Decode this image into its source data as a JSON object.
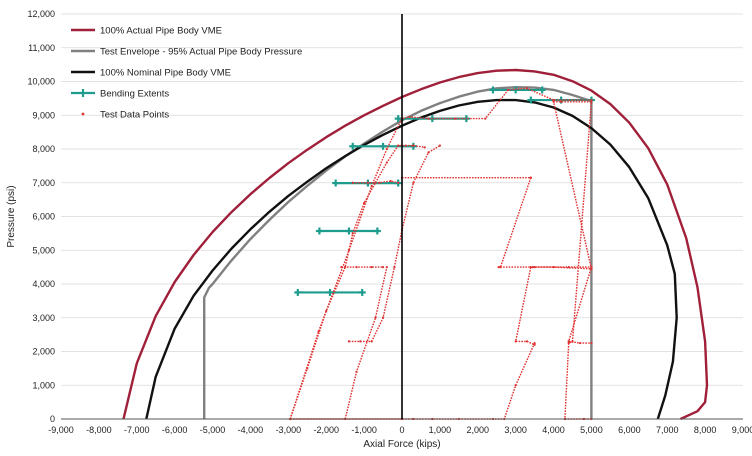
{
  "chart_data": {
    "type": "line",
    "xlabel": "Axial Force (kips)",
    "ylabel": "Pressure (psi)",
    "xlim": [
      -9000,
      9000
    ],
    "ylim": [
      0,
      12000
    ],
    "x_ticks": [
      "-9,000",
      "-8,000",
      "-7,000",
      "-6,000",
      "-5,000",
      "-4,000",
      "-3,000",
      "-2,000",
      "-1,000",
      "0",
      "1,000",
      "2,000",
      "3,000",
      "4,000",
      "5,000",
      "6,000",
      "7,000",
      "8,000",
      "9,000"
    ],
    "y_ticks": [
      "0",
      "1,000",
      "2,000",
      "3,000",
      "4,000",
      "5,000",
      "6,000",
      "7,000",
      "8,000",
      "9,000",
      "10,000",
      "11,000",
      "12,000"
    ],
    "grid": "horizontal",
    "legend_position": "top-left",
    "legend": [
      {
        "label": "100% Actual Pipe Body VME",
        "color": "#A0203A",
        "kind": "line"
      },
      {
        "label": "Test Envelope - 95% Actual Pipe Body Pressure",
        "color": "#808080",
        "kind": "line"
      },
      {
        "label": "100% Nominal Pipe Body VME",
        "color": "#111111",
        "kind": "line"
      },
      {
        "label": "Bending Extents",
        "color": "#1E9C8E",
        "kind": "marker-line"
      },
      {
        "label": "Test Data Points",
        "color": "#E03030",
        "kind": "points"
      }
    ],
    "series": [
      {
        "name": "100% Actual Pipe Body VME",
        "color": "#A0203A",
        "x": [
          -7350,
          -7000,
          -6500,
          -6000,
          -5500,
          -5000,
          -4500,
          -4000,
          -3500,
          -3000,
          -2500,
          -2000,
          -1500,
          -1000,
          -500,
          0,
          500,
          1000,
          1500,
          2000,
          2500,
          3000,
          3500,
          4000,
          4500,
          5000,
          5500,
          6000,
          6500,
          7000,
          7500,
          7800,
          8000,
          8050,
          8000,
          7800,
          7350
        ],
        "y": [
          0,
          1650,
          3050,
          4060,
          4860,
          5540,
          6130,
          6660,
          7140,
          7580,
          7980,
          8350,
          8690,
          9000,
          9280,
          9540,
          9770,
          9970,
          10130,
          10250,
          10320,
          10340,
          10300,
          10200,
          10010,
          9730,
          9330,
          8780,
          8020,
          6950,
          5360,
          3900,
          2300,
          1000,
          500,
          230,
          0
        ]
      },
      {
        "name": "Test Envelope - 95% Actual Pipe Body Pressure",
        "color": "#808080",
        "x": [
          -5220,
          -5220,
          -5100,
          -5000,
          -4500,
          -4000,
          -3500,
          -3000,
          -2500,
          -2000,
          -1500,
          -1000,
          -500,
          0,
          500,
          1000,
          1500,
          2000,
          2500,
          3000,
          3500,
          4000,
          4500,
          5000,
          5000
        ],
        "y": [
          0,
          3600,
          3880,
          4000,
          4700,
          5330,
          5900,
          6430,
          6910,
          7360,
          7780,
          8160,
          8520,
          8850,
          9130,
          9360,
          9550,
          9700,
          9800,
          9830,
          9820,
          9750,
          9600,
          9420,
          0
        ]
      },
      {
        "name": "100% Nominal Pipe Body VME",
        "color": "#111111",
        "x": [
          -6750,
          -6500,
          -6000,
          -5500,
          -5000,
          -4500,
          -4000,
          -3500,
          -3000,
          -2500,
          -2000,
          -1500,
          -1000,
          -500,
          0,
          500,
          1000,
          1500,
          2000,
          2500,
          3000,
          3500,
          4000,
          4500,
          5000,
          5500,
          6000,
          6500,
          7000,
          7200,
          7250,
          7150,
          6950,
          6750
        ],
        "y": [
          0,
          1250,
          2680,
          3650,
          4400,
          5050,
          5620,
          6140,
          6610,
          7030,
          7430,
          7790,
          8120,
          8420,
          8690,
          8930,
          9130,
          9290,
          9400,
          9450,
          9450,
          9380,
          9230,
          8980,
          8620,
          8130,
          7460,
          6540,
          5150,
          4300,
          3000,
          1700,
          700,
          0
        ]
      },
      {
        "name": "Bending Extents",
        "color": "#1E9C8E",
        "segments": [
          {
            "y": 3750,
            "x": [
              -2750,
              -1900,
              -1050
            ]
          },
          {
            "y": 5570,
            "x": [
              -2180,
              -1400,
              -650
            ]
          },
          {
            "y": 6990,
            "x": [
              -1750,
              -900,
              -100
            ]
          },
          {
            "y": 8080,
            "x": [
              -1300,
              -500,
              300
            ]
          },
          {
            "y": 8900,
            "x": [
              -100,
              800,
              1700
            ]
          },
          {
            "y": 9750,
            "x": [
              2400,
              3000,
              3700
            ]
          },
          {
            "y": 9450,
            "x": [
              3400,
              4200,
              5000
            ]
          }
        ]
      },
      {
        "name": "Test Data Points",
        "color": "#E03030",
        "paths": [
          {
            "x": [
              -2950,
              0,
              0,
              -2950
            ],
            "y": [
              0,
              0,
              0,
              0
            ]
          },
          {
            "x": [
              -2950,
              -2200,
              -1400,
              -800,
              -400,
              0,
              200,
              700,
              1400,
              2200,
              2800,
              3300,
              4000,
              5000
            ],
            "y": [
              0,
              2600,
              5000,
              6900,
              8000,
              8900,
              8950,
              8900,
              8900,
              8900,
              9750,
              9800,
              9450,
              9450
            ]
          },
          {
            "x": [
              -2950,
              -2500,
              -2000,
              -1500,
              -1300,
              -1000,
              -700,
              -400,
              -100,
              100,
              300,
              600
            ],
            "y": [
              0,
              1500,
              3200,
              4500,
              5500,
              6400,
              7000,
              7600,
              8100,
              8100,
              8100,
              8050
            ]
          },
          {
            "x": [
              -1500,
              -1200,
              -700,
              -400
            ],
            "y": [
              0,
              1400,
              3000,
              4500
            ]
          },
          {
            "x": [
              -1400,
              -1100,
              -800,
              -500,
              -200,
              0,
              300,
              700,
              1000
            ],
            "y": [
              2300,
              2300,
              2300,
              3000,
              4500,
              5600,
              7000,
              7900,
              8100
            ]
          },
          {
            "x": [
              -1600,
              -1200,
              -800,
              -500
            ],
            "y": [
              4500,
              4500,
              4500,
              4500
            ]
          },
          {
            "x": [
              -1300,
              -900,
              -600,
              -300,
              -100
            ],
            "y": [
              7000,
              7000,
              7000,
              7050,
              7000
            ]
          },
          {
            "x": [
              0,
              3400
            ],
            "y": [
              7150,
              7150
            ]
          },
          {
            "x": [
              3400,
              2600,
              2550,
              3400,
              3000,
              3300,
              3500
            ],
            "y": [
              7150,
              4500,
              4500,
              4500,
              2300,
              2300,
              2200
            ]
          },
          {
            "x": [
              3450,
              4000,
              5000,
              4000,
              4200,
              5000,
              4500,
              4400,
              4300
            ],
            "y": [
              4500,
              4500,
              4450,
              9400,
              9400,
              9400,
              2300,
              2250,
              0
            ]
          },
          {
            "x": [
              3500,
              3000,
              2700,
              2400,
              1500,
              800,
              300,
              0
            ],
            "y": [
              2250,
              1000,
              0,
              0,
              0,
              0,
              0,
              0
            ]
          },
          {
            "x": [
              4300,
              4800,
              5000
            ],
            "y": [
              0,
              0,
              0
            ]
          },
          {
            "x": [
              3500,
              4400,
              5000,
              4400,
              4500
            ],
            "y": [
              4500,
              4500,
              4500,
              2300,
              2300
            ]
          },
          {
            "x": [
              4400,
              4700,
              5000
            ],
            "y": [
              2300,
              2250,
              2250
            ]
          }
        ]
      }
    ]
  }
}
